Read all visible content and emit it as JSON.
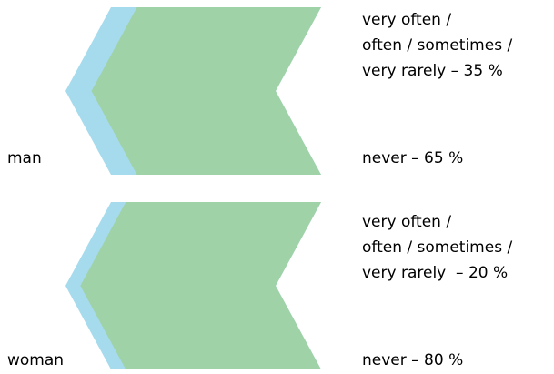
{
  "chart_data": {
    "type": "chevron-proportion",
    "groups": [
      {
        "name": "man",
        "segments": [
          {
            "label_lines": [
              "very often /",
              "often / sometimes /",
              "very rarely – 35 %"
            ],
            "value": 35,
            "color": "#a5dbed"
          },
          {
            "label_lines": [
              "never – 65 %"
            ],
            "value": 65,
            "color": "#a0d2a8"
          }
        ]
      },
      {
        "name": "woman",
        "segments": [
          {
            "label_lines": [
              "very often /",
              "often / sometimes /",
              "very rarely  – 20 %"
            ],
            "value": 20,
            "color": "#a5dbed"
          },
          {
            "label_lines": [
              "never – 80 %"
            ],
            "value": 80,
            "color": "#a0d2a8"
          }
        ]
      }
    ]
  }
}
